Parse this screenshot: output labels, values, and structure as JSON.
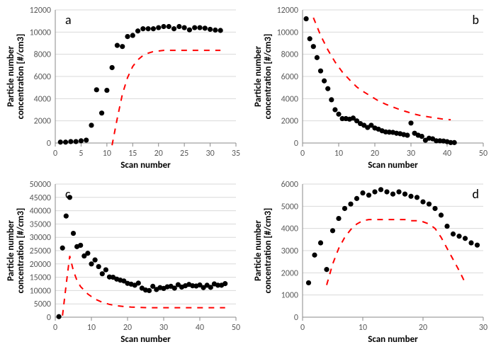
{
  "global": {
    "background_color": "#ffffff",
    "grid_color": "#d9d9d9",
    "axis_color": "#8a8a8a",
    "marker_color": "#000000",
    "line_color": "#ff0000",
    "tick_fontsize": 12,
    "axis_title_fontsize": 13,
    "panel_label_fontsize": 18,
    "marker_radius": 3.6,
    "line_width": 2,
    "line_dash": "8,8"
  },
  "panels": [
    {
      "id": "a",
      "label": "a",
      "label_pos": "top-left",
      "xlabel": "Scan number",
      "ylabel": "Particle number\nconcentration [#/cm3]",
      "xlim": [
        0,
        35
      ],
      "ylim": [
        0,
        12000
      ],
      "xtick_step": 5,
      "ytick_step": 2000,
      "scatter": {
        "x": [
          1,
          2,
          3,
          4,
          5,
          6,
          7,
          8,
          9,
          10,
          11,
          12,
          13,
          14,
          15,
          16,
          17,
          18,
          19,
          20,
          21,
          22,
          23,
          24,
          25,
          26,
          27,
          28,
          29,
          30,
          31,
          32
        ],
        "y": [
          80,
          80,
          130,
          130,
          200,
          260,
          1600,
          4800,
          2700,
          4750,
          6800,
          8800,
          8700,
          9600,
          9700,
          10100,
          10300,
          10300,
          10300,
          10400,
          10500,
          10500,
          10300,
          10500,
          10400,
          10200,
          10400,
          10400,
          10350,
          10250,
          10180,
          10150
        ]
      },
      "dashed_line": {
        "x": [
          11,
          12,
          13,
          14,
          15,
          16,
          17,
          18,
          19,
          20,
          21,
          22,
          23,
          24,
          25,
          26,
          27,
          28,
          29,
          30,
          31,
          32
        ],
        "y": [
          -200,
          2200,
          4400,
          5900,
          6900,
          7500,
          7900,
          8100,
          8250,
          8300,
          8350,
          8350,
          8350,
          8350,
          8350,
          8350,
          8350,
          8350,
          8350,
          8350,
          8350,
          8350
        ]
      }
    },
    {
      "id": "b",
      "label": "b",
      "label_pos": "top-right",
      "xlabel": "Scan number",
      "ylabel": "Particle number\nconcentration [#/cm3]",
      "xlim": [
        0,
        50
      ],
      "ylim": [
        0,
        12000
      ],
      "xtick_step": 10,
      "ytick_step": 2000,
      "scatter": {
        "x": [
          1,
          2,
          3,
          4,
          5,
          6,
          7,
          8,
          9,
          10,
          11,
          12,
          13,
          14,
          15,
          16,
          17,
          18,
          19,
          20,
          21,
          22,
          23,
          24,
          25,
          26,
          27,
          28,
          29,
          30,
          31,
          32,
          33,
          34,
          35,
          36,
          37,
          38,
          39,
          40,
          41,
          42
        ],
        "y": [
          11200,
          9400,
          8700,
          7700,
          6500,
          5600,
          4900,
          3900,
          3000,
          2600,
          2200,
          2200,
          2150,
          2250,
          2000,
          1750,
          1600,
          1400,
          1600,
          1350,
          1250,
          1100,
          1000,
          980,
          960,
          880,
          840,
          760,
          700,
          1800,
          880,
          700,
          600,
          250,
          430,
          380,
          200,
          200,
          180,
          120,
          40,
          40
        ]
      },
      "dashed_line": {
        "x": [
          3,
          5,
          7,
          9,
          11,
          13,
          15,
          17,
          19,
          21,
          23,
          25,
          27,
          29,
          31,
          33,
          35,
          37,
          39,
          41
        ],
        "y": [
          11300,
          9700,
          8400,
          7300,
          6400,
          5700,
          5050,
          4600,
          4200,
          3800,
          3500,
          3250,
          3000,
          2800,
          2600,
          2450,
          2350,
          2250,
          2150,
          2100
        ]
      }
    },
    {
      "id": "c",
      "label": "c",
      "label_pos": "top-left",
      "xlabel": "Scan number",
      "ylabel": "Particle number\nconcentration [#/cm3]",
      "xlim": [
        0,
        50
      ],
      "ylim": [
        0,
        50000
      ],
      "xtick_step": 10,
      "ytick_step": 5000,
      "scatter": {
        "x": [
          1,
          2,
          3,
          4,
          5,
          6,
          7,
          8,
          9,
          10,
          11,
          12,
          13,
          14,
          15,
          16,
          17,
          18,
          19,
          20,
          21,
          22,
          23,
          24,
          25,
          26,
          27,
          28,
          29,
          30,
          31,
          32,
          33,
          34,
          35,
          36,
          37,
          38,
          39,
          40,
          41,
          42,
          43,
          44,
          45,
          46,
          47
        ],
        "y": [
          200,
          26000,
          38000,
          45000,
          31500,
          26500,
          27000,
          23000,
          24000,
          20000,
          21500,
          19000,
          16300,
          17800,
          15100,
          15000,
          14300,
          13900,
          13600,
          12700,
          12400,
          12000,
          12800,
          10900,
          10200,
          10000,
          11600,
          10400,
          11100,
          10800,
          11400,
          11600,
          10900,
          12200,
          11300,
          11800,
          12300,
          11800,
          11700,
          12100,
          11100,
          12000,
          11200,
          12500,
          12000,
          12000,
          12600
        ]
      },
      "dashed_line": {
        "x": [
          2,
          3,
          4,
          5,
          6,
          7,
          9,
          11,
          13,
          15,
          17,
          19,
          21,
          23,
          25,
          27,
          29,
          31,
          33,
          35,
          37,
          39,
          41,
          43,
          45,
          47
        ],
        "y": [
          600,
          12000,
          23000,
          17500,
          13800,
          11500,
          8700,
          6800,
          5600,
          4800,
          4300,
          4000,
          3800,
          3700,
          3600,
          3550,
          3550,
          3550,
          3550,
          3550,
          3550,
          3550,
          3550,
          3550,
          3550,
          3550
        ]
      }
    },
    {
      "id": "d",
      "label": "d",
      "label_pos": "top-right",
      "xlabel": "Scan number",
      "ylabel": "Particle number\nconcentration [#/cm3]",
      "xlim": [
        0,
        30
      ],
      "ylim": [
        0,
        6000
      ],
      "xtick_step": 10,
      "ytick_step": 1000,
      "scatter": {
        "x": [
          1,
          2,
          3,
          4,
          5,
          6,
          7,
          8,
          9,
          10,
          11,
          12,
          13,
          14,
          15,
          16,
          17,
          18,
          19,
          20,
          21,
          22,
          23,
          24,
          25,
          26,
          27,
          28,
          29
        ],
        "y": [
          1550,
          2800,
          3350,
          2150,
          3900,
          4450,
          4900,
          5100,
          5350,
          5600,
          5500,
          5650,
          5750,
          5650,
          5550,
          5650,
          5550,
          5450,
          5400,
          5200,
          5100,
          4900,
          4600,
          4100,
          3750,
          3650,
          3550,
          3350,
          3250
        ]
      },
      "dashed_line": {
        "x": [
          4,
          5,
          6,
          7,
          8,
          9,
          10,
          11,
          12,
          13,
          14,
          15,
          16,
          17,
          18,
          19,
          20,
          21,
          22,
          23,
          24,
          25,
          26,
          27
        ],
        "y": [
          1450,
          2400,
          3100,
          3600,
          3950,
          4200,
          4350,
          4400,
          4400,
          4400,
          4400,
          4400,
          4400,
          4400,
          4350,
          4350,
          4300,
          4200,
          4000,
          3600,
          3100,
          2600,
          2100,
          1550
        ]
      }
    }
  ]
}
